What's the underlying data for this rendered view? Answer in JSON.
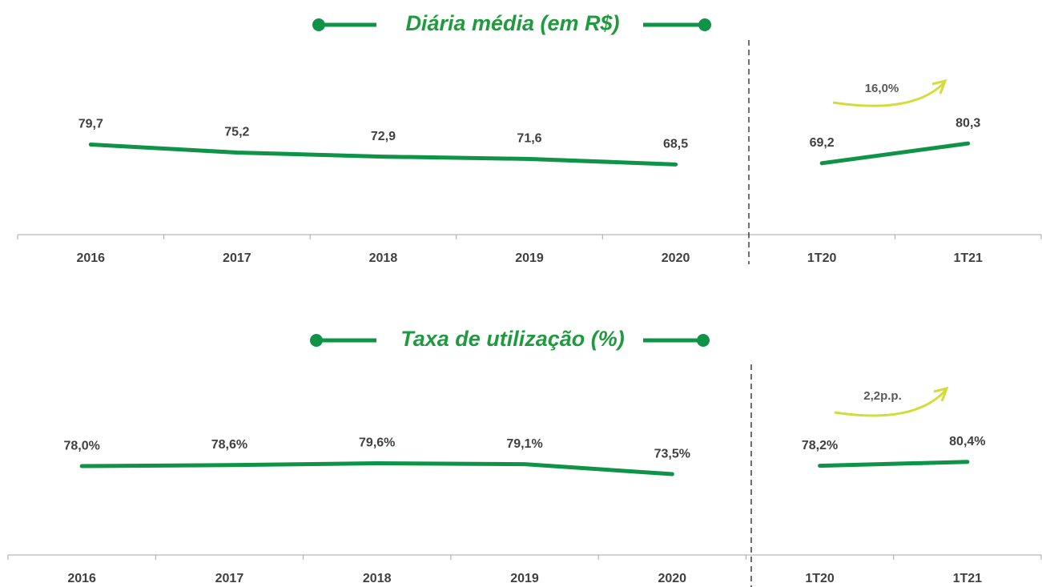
{
  "chart_data": [
    {
      "type": "line",
      "title": "Diária média (em R$)",
      "categories": [
        "2016",
        "2017",
        "2018",
        "2019",
        "2020",
        "1T20",
        "1T21"
      ],
      "series": [
        {
          "color": "#0e9347",
          "values": [
            79.7,
            75.2,
            72.9,
            71.6,
            68.5,
            null,
            null
          ],
          "value_labels": [
            "79,7",
            "75,2",
            "72,9",
            "71,6",
            "68,5",
            null,
            null
          ]
        },
        {
          "color": "#0e9347",
          "values": [
            null,
            null,
            null,
            null,
            null,
            69.2,
            80.3
          ],
          "value_labels": [
            null,
            null,
            null,
            null,
            null,
            "69,2",
            "80,3"
          ]
        }
      ],
      "ylim": [
        29,
        134
      ],
      "annotation": "16,0%",
      "annotation_color": "#d4dc3a"
    },
    {
      "type": "line",
      "title": "Taxa de utilização (%)",
      "categories": [
        "2016",
        "2017",
        "2018",
        "2019",
        "2020",
        "1T20",
        "1T21"
      ],
      "series": [
        {
          "color": "#0e9347",
          "values": [
            78.0,
            78.6,
            79.6,
            79.1,
            73.5,
            null,
            null
          ],
          "value_labels": [
            "78,0%",
            "78,6%",
            "79,6%",
            "79,1%",
            "73,5%",
            null,
            null
          ]
        },
        {
          "color": "#0e9347",
          "values": [
            null,
            null,
            null,
            null,
            null,
            78.2,
            80.4
          ],
          "value_labels": [
            null,
            null,
            null,
            null,
            null,
            "78,2%",
            "80,4%"
          ]
        }
      ],
      "ylim": [
        28,
        133
      ],
      "annotation": "2,2p.p.",
      "annotation_color": "#d4dc3a"
    }
  ]
}
